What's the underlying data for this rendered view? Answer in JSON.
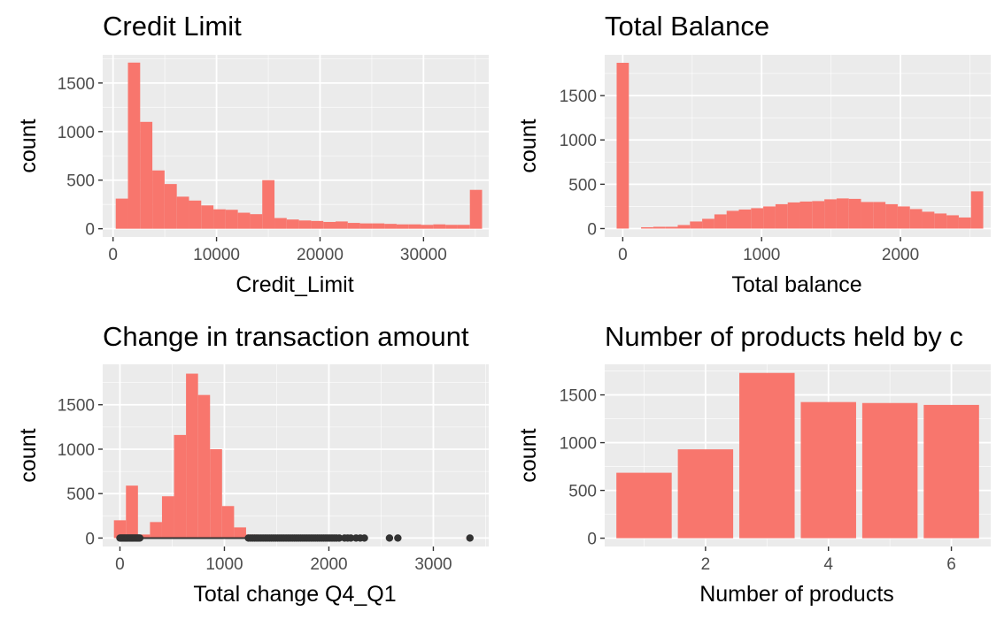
{
  "chart_data": [
    {
      "type": "bar",
      "title": "Credit Limit",
      "xlabel": "Credit_Limit",
      "ylabel": "count",
      "xlim": [
        -1000,
        36300
      ],
      "ylim": [
        -85,
        1790
      ],
      "xticks": [
        0,
        10000,
        20000,
        30000
      ],
      "xtick_labels": [
        "0",
        "10000",
        "20000",
        "30000"
      ],
      "yticks": [
        0,
        500,
        1000,
        1500
      ],
      "ytick_labels": [
        "0",
        "500",
        "1000",
        "1500"
      ],
      "color": "#f8766d",
      "bin_width": 1180,
      "x": [
        849,
        2029,
        3209,
        4389,
        5569,
        6749,
        7929,
        9109,
        10289,
        11469,
        12649,
        13829,
        15009,
        16189,
        17369,
        18549,
        19729,
        20909,
        22089,
        23269,
        24449,
        25629,
        26809,
        27989,
        29169,
        30349,
        31529,
        32709,
        33889,
        35069
      ],
      "values": [
        310,
        1710,
        1100,
        600,
        460,
        330,
        290,
        240,
        200,
        195,
        165,
        150,
        500,
        110,
        95,
        85,
        80,
        70,
        75,
        60,
        55,
        55,
        50,
        45,
        45,
        40,
        45,
        40,
        40,
        400
      ]
    },
    {
      "type": "bar",
      "title": "Total Balance",
      "xlabel": "Total balance",
      "ylabel": "count",
      "xlim": [
        -130,
        2650
      ],
      "ylim": [
        -95,
        1960
      ],
      "xticks": [
        0,
        1000,
        2000
      ],
      "xtick_labels": [
        "0",
        "1000",
        "2000"
      ],
      "yticks": [
        0,
        500,
        1000,
        1500
      ],
      "yticks_labels_note": "",
      "ytick_labels": [
        "0",
        "500",
        "1000",
        "1500"
      ],
      "color": "#f8766d",
      "bin_width": 88,
      "x": [
        0,
        88,
        176,
        264,
        352,
        440,
        528,
        616,
        704,
        792,
        880,
        968,
        1056,
        1144,
        1232,
        1320,
        1408,
        1496,
        1584,
        1672,
        1760,
        1848,
        1936,
        2024,
        2112,
        2200,
        2288,
        2376,
        2464,
        2552
      ],
      "values": [
        1870,
        0,
        15,
        20,
        20,
        40,
        80,
        110,
        160,
        200,
        215,
        230,
        250,
        275,
        295,
        305,
        310,
        330,
        340,
        335,
        300,
        300,
        275,
        250,
        220,
        190,
        170,
        150,
        125,
        420
      ]
    },
    {
      "type": "bar",
      "title": "Change in transaction amount",
      "xlabel": "Total change Q4_Q1",
      "ylabel": "count",
      "xlim": [
        -165,
        3530
      ],
      "ylim": [
        -95,
        1955
      ],
      "xticks": [
        0,
        1000,
        2000,
        3000
      ],
      "xtick_labels": [
        "0",
        "1000",
        "2000",
        "3000"
      ],
      "yticks": [
        0,
        500,
        1000,
        1500
      ],
      "ytick_labels": [
        "0",
        "500",
        "1000",
        "1500"
      ],
      "color": "#f8766d",
      "bin_width": 115,
      "x": [
        0,
        115,
        230,
        345,
        460,
        575,
        690,
        805,
        920,
        1035,
        1150,
        1265,
        1380,
        1495,
        1610,
        1725,
        1840,
        1955,
        2070,
        2185,
        2300,
        2415,
        2530,
        2645,
        2760,
        2875,
        2990,
        3105,
        3220,
        3335
      ],
      "values": [
        200,
        590,
        40,
        180,
        470,
        1160,
        1850,
        1610,
        1000,
        360,
        120,
        40,
        15,
        8,
        5,
        3,
        2,
        1,
        1,
        0,
        1,
        0,
        0,
        1,
        0,
        0,
        0,
        0,
        0,
        1
      ],
      "boxplot": {
        "whisker_low": 0,
        "whisker_high": 1210,
        "outliers": [
          0,
          10,
          20,
          30,
          40,
          50,
          60,
          70,
          80,
          90,
          100,
          110,
          120,
          130,
          140,
          150,
          160,
          170,
          180,
          190,
          1230,
          1250,
          1270,
          1290,
          1310,
          1330,
          1350,
          1370,
          1390,
          1410,
          1430,
          1450,
          1470,
          1490,
          1510,
          1530,
          1550,
          1570,
          1590,
          1610,
          1630,
          1650,
          1670,
          1690,
          1710,
          1730,
          1750,
          1770,
          1790,
          1810,
          1830,
          1850,
          1870,
          1890,
          1910,
          1930,
          1950,
          1970,
          1990,
          2010,
          2030,
          2050,
          2070,
          2100,
          2150,
          2180,
          2210,
          2260,
          2300,
          2340,
          2580,
          2660,
          3350
        ]
      }
    },
    {
      "type": "bar",
      "title": "Number of products held by c",
      "xlabel": "Number of products",
      "ylabel": "count",
      "xlim": [
        0.36,
        6.64
      ],
      "ylim": [
        -87,
        1820
      ],
      "xticks": [
        2,
        4,
        6
      ],
      "xtick_labels": [
        "2",
        "4",
        "6"
      ],
      "yticks": [
        0,
        500,
        1000,
        1500
      ],
      "ytick_labels": [
        "0",
        "500",
        "1000",
        "1500"
      ],
      "color": "#f8766d",
      "bar_width": 0.9,
      "categories": [
        1,
        2,
        3,
        4,
        5,
        6
      ],
      "values": [
        685,
        930,
        1730,
        1425,
        1415,
        1395
      ]
    }
  ]
}
